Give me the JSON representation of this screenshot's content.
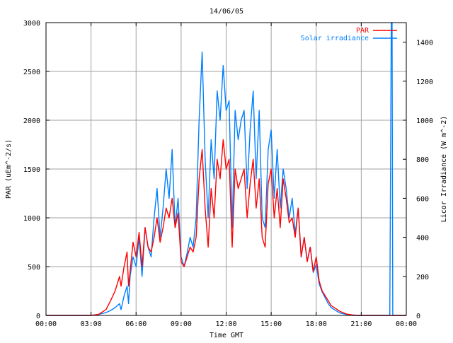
{
  "chart_data": {
    "type": "line",
    "title": "14/06/05",
    "xlabel": "Time GMT",
    "ylabel_left": "PAR (uEm^-2/s)",
    "ylabel_right": "Licor Irradiance (W m^-2)",
    "x_tick_labels": [
      "00:00",
      "03:00",
      "06:00",
      "09:00",
      "12:00",
      "15:00",
      "18:00",
      "21:00",
      "00:00"
    ],
    "y_left_ticks": [
      "0",
      "500",
      "1000",
      "1500",
      "2000",
      "2500",
      "3000"
    ],
    "y_right_ticks": [
      "0",
      "200",
      "400",
      "600",
      "800",
      "1000",
      "1200",
      "1400"
    ],
    "xlim_hours": [
      0,
      24
    ],
    "ylim_left": [
      0,
      3000
    ],
    "ylim_right": [
      0,
      1500
    ],
    "grid": true,
    "legend_position": "top-right",
    "series": [
      {
        "name": "PAR",
        "axis": "left",
        "color": "#ff0000",
        "x_hours": [
          0,
          3.0,
          3.5,
          4.0,
          4.3,
          4.6,
          4.9,
          5.0,
          5.2,
          5.4,
          5.5,
          5.6,
          5.8,
          6.0,
          6.2,
          6.4,
          6.6,
          6.8,
          7.0,
          7.2,
          7.4,
          7.6,
          7.8,
          8.0,
          8.2,
          8.4,
          8.6,
          8.8,
          9.0,
          9.2,
          9.4,
          9.6,
          9.8,
          10.0,
          10.2,
          10.4,
          10.6,
          10.8,
          11.0,
          11.2,
          11.4,
          11.6,
          11.8,
          12.0,
          12.2,
          12.4,
          12.6,
          12.8,
          13.0,
          13.2,
          13.4,
          13.6,
          13.8,
          14.0,
          14.2,
          14.4,
          14.6,
          14.8,
          15.0,
          15.2,
          15.4,
          15.6,
          15.8,
          16.0,
          16.2,
          16.4,
          16.6,
          16.8,
          17.0,
          17.2,
          17.4,
          17.6,
          17.8,
          18.0,
          18.2,
          18.4,
          18.6,
          18.8,
          19.0,
          19.3,
          19.6,
          20.0,
          20.4,
          20.8,
          21.0,
          22.0,
          24.0
        ],
        "values": [
          0,
          0,
          10,
          60,
          150,
          250,
          400,
          300,
          500,
          650,
          300,
          450,
          750,
          600,
          850,
          500,
          900,
          700,
          650,
          800,
          1000,
          750,
          900,
          1100,
          1000,
          1200,
          900,
          1050,
          550,
          500,
          600,
          700,
          650,
          800,
          1400,
          1700,
          1100,
          700,
          1300,
          1000,
          1600,
          1400,
          1800,
          1500,
          1600,
          700,
          1500,
          1300,
          1400,
          1500,
          1000,
          1350,
          1600,
          1100,
          1400,
          800,
          700,
          1350,
          1500,
          1000,
          1300,
          900,
          1400,
          1200,
          950,
          1000,
          800,
          1100,
          600,
          800,
          550,
          700,
          450,
          600,
          350,
          250,
          200,
          150,
          100,
          70,
          40,
          15,
          5,
          0,
          0,
          0,
          0
        ]
      },
      {
        "name": "Solar irradiance",
        "axis": "right",
        "color": "#0080ff",
        "x_hours": [
          0,
          3.0,
          3.5,
          4.0,
          4.3,
          4.6,
          4.9,
          5.0,
          5.2,
          5.4,
          5.5,
          5.6,
          5.8,
          6.0,
          6.2,
          6.4,
          6.6,
          6.8,
          7.0,
          7.2,
          7.4,
          7.6,
          7.8,
          8.0,
          8.2,
          8.4,
          8.6,
          8.8,
          9.0,
          9.2,
          9.4,
          9.6,
          9.8,
          10.0,
          10.2,
          10.4,
          10.6,
          10.8,
          11.0,
          11.2,
          11.4,
          11.6,
          11.8,
          12.0,
          12.2,
          12.4,
          12.6,
          12.8,
          13.0,
          13.2,
          13.4,
          13.6,
          13.8,
          14.0,
          14.2,
          14.4,
          14.6,
          14.8,
          15.0,
          15.2,
          15.4,
          15.6,
          15.8,
          16.0,
          16.2,
          16.4,
          16.6,
          16.8,
          17.0,
          17.2,
          17.4,
          17.6,
          17.8,
          18.0,
          18.2,
          18.4,
          18.6,
          18.8,
          19.0,
          19.3,
          19.6,
          20.0,
          20.4,
          20.8,
          21.0,
          22.9,
          23.0,
          23.05,
          23.1,
          24.0
        ],
        "values": [
          0,
          0,
          5,
          15,
          25,
          40,
          60,
          30,
          100,
          150,
          60,
          200,
          300,
          250,
          400,
          200,
          450,
          350,
          300,
          500,
          650,
          400,
          550,
          750,
          600,
          850,
          450,
          600,
          300,
          250,
          320,
          400,
          350,
          500,
          1000,
          1350,
          800,
          500,
          900,
          700,
          1150,
          1000,
          1280,
          1050,
          1100,
          450,
          1050,
          900,
          1000,
          1050,
          650,
          950,
          1150,
          700,
          1050,
          500,
          450,
          850,
          950,
          600,
          850,
          550,
          750,
          650,
          500,
          600,
          420,
          550,
          300,
          400,
          280,
          350,
          220,
          260,
          160,
          120,
          90,
          60,
          40,
          25,
          12,
          5,
          0,
          0,
          0,
          0,
          1500,
          1500,
          0,
          0
        ]
      }
    ]
  }
}
